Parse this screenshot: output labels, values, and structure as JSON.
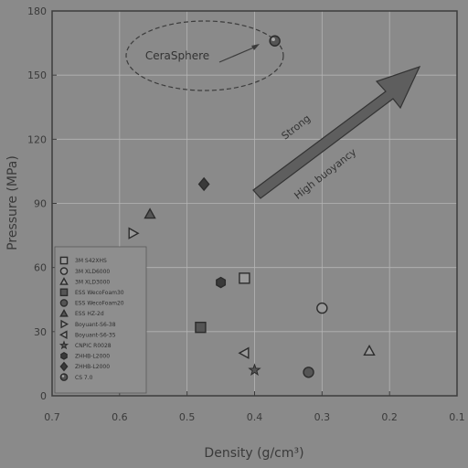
{
  "chart_data": {
    "type": "scatter",
    "xlabel": "Density (g/cm³)",
    "ylabel": "Pressure (MPa)",
    "xlim": [
      0.7,
      0.1
    ],
    "ylim": [
      0,
      180
    ],
    "x_reversed": true,
    "x_ticks": [
      "0.7",
      "0.6",
      "0.5",
      "0.4",
      "0.3",
      "0.2",
      "0.1"
    ],
    "y_ticks": [
      "0",
      "30",
      "60",
      "90",
      "120",
      "150",
      "180"
    ],
    "grid": true,
    "legend_position": "bottom-left",
    "series": [
      {
        "name": "3M S42XHS",
        "marker": "square-open",
        "x": 0.415,
        "y": 55
      },
      {
        "name": "3M XLD6000",
        "marker": "circle-open",
        "x": 0.3,
        "y": 41
      },
      {
        "name": "3M XLD3000",
        "marker": "triangle-open",
        "x": 0.23,
        "y": 21
      },
      {
        "name": "ESS WecoFoam30",
        "marker": "square",
        "x": 0.48,
        "y": 32
      },
      {
        "name": "ESS WecoFoam20",
        "marker": "circle",
        "x": 0.32,
        "y": 11
      },
      {
        "name": "ESS HZ-2d",
        "marker": "triangle",
        "x": 0.555,
        "y": 85
      },
      {
        "name": "Boyuant-S6-38",
        "marker": "triangle-right",
        "x": 0.58,
        "y": 76
      },
      {
        "name": "Boyuant-S6-35",
        "marker": "triangle-left",
        "x": 0.415,
        "y": 20
      },
      {
        "name": "CNPIC R0028",
        "marker": "star",
        "x": 0.4,
        "y": 12
      },
      {
        "name": "ZHHB-L2000",
        "marker": "hexagon",
        "x": 0.45,
        "y": 53
      },
      {
        "name": "ZHHB-L2000",
        "marker": "diamond",
        "x": 0.475,
        "y": 99
      },
      {
        "name": "CS 7.0",
        "marker": "circle-dot",
        "x": 0.37,
        "y": 166
      }
    ],
    "annotations": {
      "callout": "CeraSphere",
      "arrow_text_1": "Strong",
      "arrow_text_2": "High buoyancy"
    }
  }
}
